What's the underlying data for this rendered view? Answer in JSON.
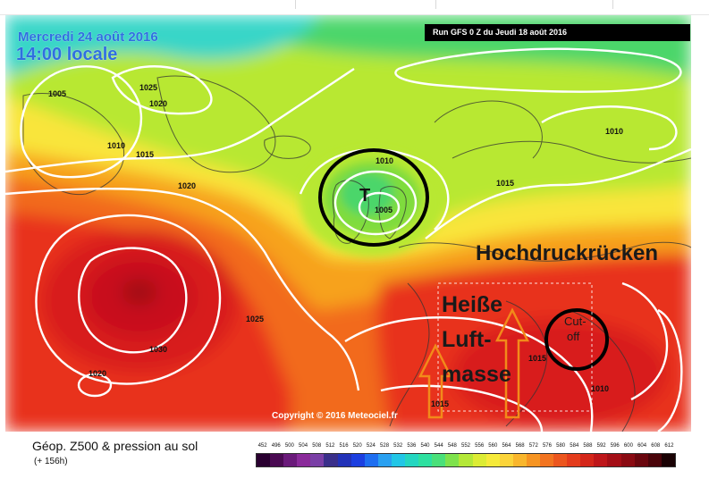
{
  "map": {
    "date_line": "Mercredi 24 août 2016",
    "time_line": "14:00 locale",
    "run_banner": "Run GFS 0 Z du Jeudi 18 août 2016",
    "copyright": "Copyright © 2016 Meteociel.fr",
    "low_symbol": "T",
    "isobar_labels": [
      "1005",
      "1025",
      "1020",
      "1010",
      "1015",
      "1020",
      "1010",
      "1005",
      "1015",
      "1010",
      "1025",
      "1030",
      "1020",
      "1015",
      "1010",
      "1015"
    ],
    "annotations": {
      "ridge": "Hochdruckrücken",
      "hot_line1": "Heiße",
      "hot_line2": "Luft-",
      "hot_line3": "masse",
      "cutoff_line1": "Cut-",
      "cutoff_line2": "off"
    },
    "colors": {
      "hot_core": "#c8101a",
      "hot": "#e8301e",
      "orange": "#f26a1c",
      "amber": "#f7a21c",
      "yellow": "#f9e53a",
      "lime": "#b8e832",
      "green": "#7fdc3c",
      "cyan": "#38d6c8",
      "annotation_circle": "#000000",
      "arrow_outline": "#f28a1a"
    }
  },
  "legend": {
    "title": "Géop. Z500 & pression au sol",
    "subtitle": "(+ 156h)",
    "scale_values": [
      "452",
      "496",
      "500",
      "504",
      "508",
      "512",
      "516",
      "520",
      "524",
      "528",
      "532",
      "536",
      "540",
      "544",
      "548",
      "552",
      "556",
      "560",
      "564",
      "568",
      "572",
      "576",
      "580",
      "584",
      "588",
      "592",
      "596",
      "600",
      "604",
      "608",
      "612"
    ],
    "scale_colors": [
      "#2a0030",
      "#4a0a52",
      "#6a1a7a",
      "#8a2a9a",
      "#7a3fa6",
      "#3a2f8a",
      "#2232b8",
      "#1c3fe0",
      "#1e6ef0",
      "#2aa0f0",
      "#22c6e6",
      "#24d6c0",
      "#2ee0a0",
      "#4ae07a",
      "#7ee24c",
      "#b4e838",
      "#dcec34",
      "#f6ea3a",
      "#fbd43a",
      "#f9b62c",
      "#f69422",
      "#f27420",
      "#ec561e",
      "#e43c1c",
      "#d4261a",
      "#be161a",
      "#a40e16",
      "#8a0a12",
      "#6a060e",
      "#4a040a",
      "#1a0204"
    ]
  }
}
